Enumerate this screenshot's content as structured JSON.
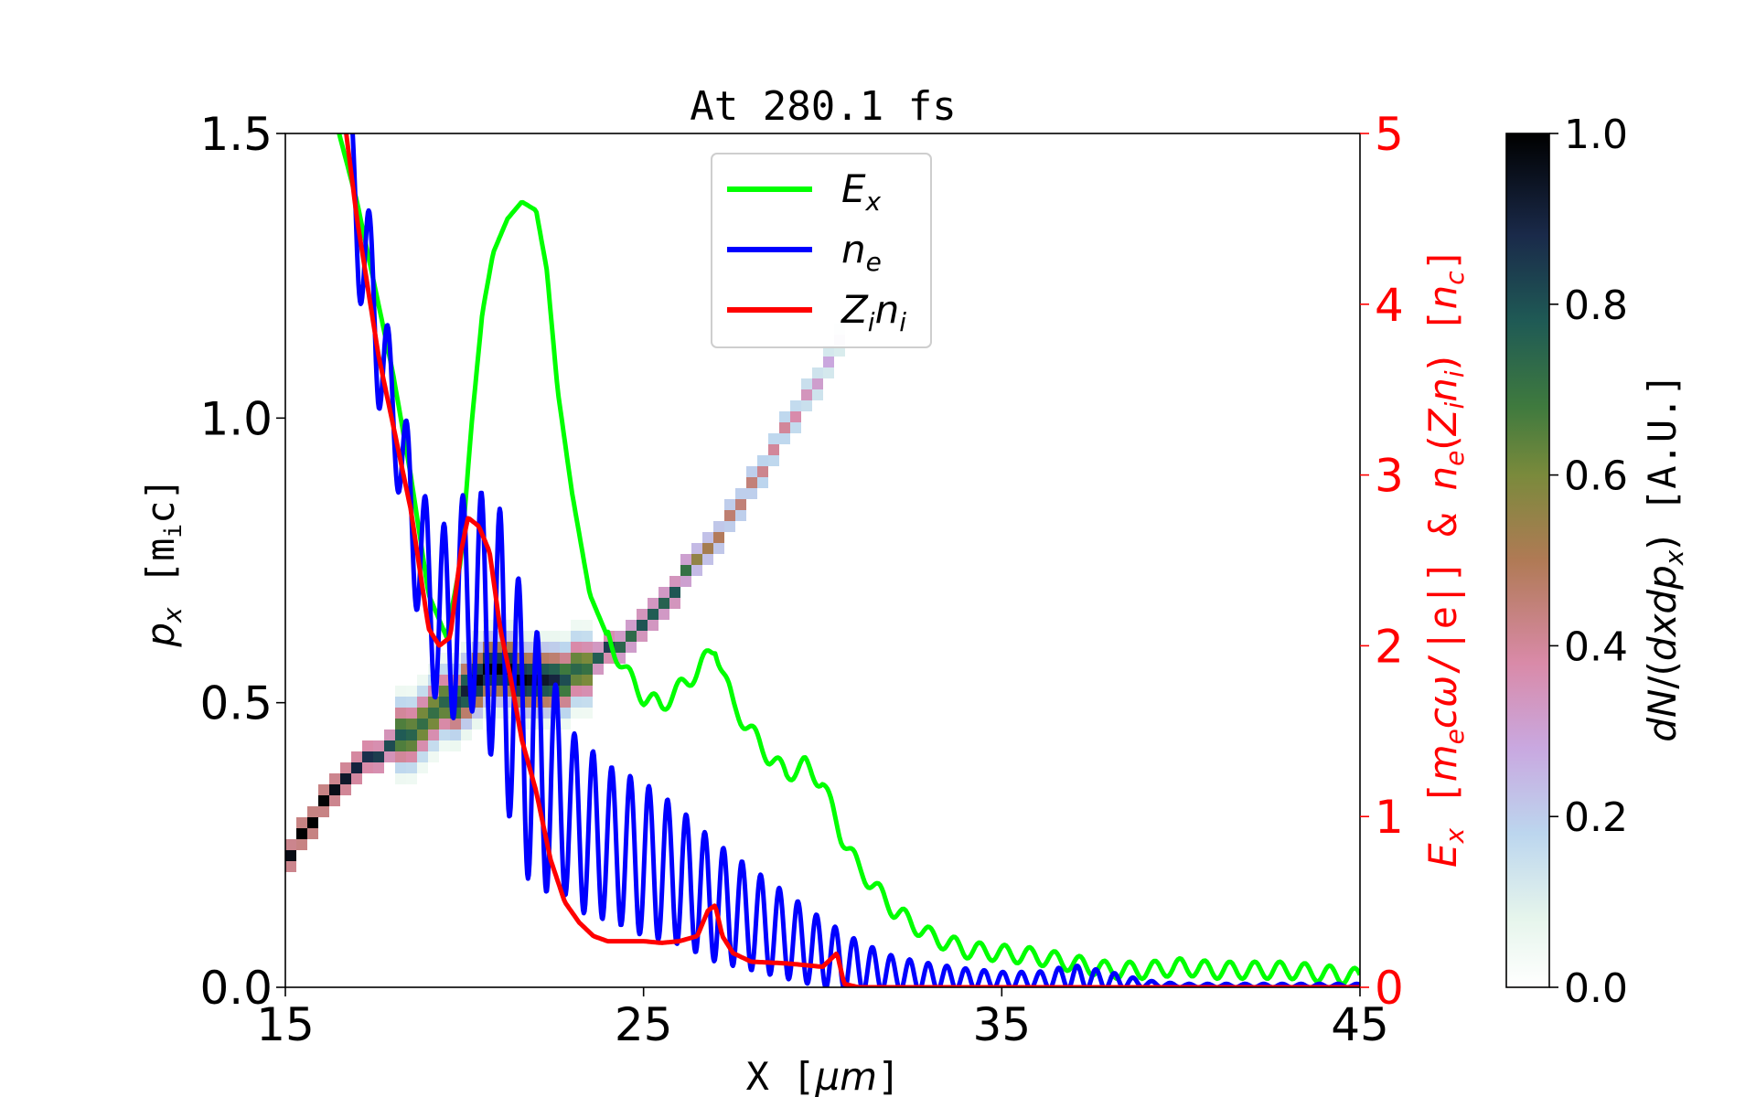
{
  "chart_data": {
    "type": "line",
    "title": "At 280.1 fs",
    "xlabel": "X [μm]",
    "ylabel_left": "p_x [m_ic]",
    "ylabel_right": "E_x [m_ecω/|e|] & n_e(Z_in_i) [n_c]",
    "colorbar_label": "dN/(dxdp_x) [A.U.]",
    "xlim": [
      15,
      45
    ],
    "ylim_left": [
      0,
      1.5
    ],
    "ylim_right": [
      0,
      5
    ],
    "colorbar_range": [
      0,
      1
    ],
    "x_ticks": [
      "15",
      "25",
      "35",
      "45"
    ],
    "x_tick_values": [
      15,
      25,
      35,
      45
    ],
    "y_left_ticks": [
      "0.0",
      "0.5",
      "1.0",
      "1.5"
    ],
    "y_left_tick_values": [
      0,
      0.5,
      1.0,
      1.5
    ],
    "y_right_ticks": [
      "0",
      "1",
      "2",
      "3",
      "4",
      "5"
    ],
    "y_right_tick_values": [
      0,
      1,
      2,
      3,
      4,
      5
    ],
    "colorbar_ticks": [
      "0.0",
      "0.2",
      "0.4",
      "0.6",
      "0.8",
      "1.0"
    ],
    "colorbar_tick_values": [
      0,
      0.2,
      0.4,
      0.6,
      0.8,
      1.0
    ],
    "legend": {
      "placement": "upper-center",
      "entries": [
        {
          "main": "E",
          "sub": "x",
          "color": "#00ff00"
        },
        {
          "main": "n",
          "sub": "e",
          "color": "#0000ff"
        },
        {
          "main": "Z",
          "sub": "i",
          "main2": "n",
          "sub2": "i",
          "color": "#ff0000"
        }
      ]
    },
    "series": [
      {
        "name": "E_x",
        "color": "#00ff00",
        "axis": "right",
        "x": [
          16.5,
          17.0,
          17.5,
          18.0,
          18.5,
          19.0,
          19.5,
          19.9,
          20.2,
          20.5,
          20.8,
          21.2,
          21.6,
          22.0,
          22.3,
          22.6,
          23.0,
          23.5,
          24.0,
          24.5,
          25.0,
          25.5,
          26.0,
          26.5,
          27.0,
          27.5,
          28.0,
          28.5,
          29.0,
          29.5,
          30.0,
          30.5,
          31.0,
          32.0,
          33.0,
          34.0,
          35.0,
          36.0,
          37.0,
          38.0,
          39.0,
          40.0,
          41.0,
          42.0,
          43.0,
          44.0,
          45.0
        ],
        "values": [
          5.0,
          4.6,
          4.1,
          3.6,
          3.0,
          2.3,
          2.05,
          2.5,
          3.3,
          3.95,
          4.3,
          4.5,
          4.6,
          4.55,
          4.2,
          3.5,
          2.9,
          2.3,
          2.05,
          1.85,
          1.7,
          1.65,
          1.75,
          1.85,
          2.0,
          1.65,
          1.5,
          1.35,
          1.25,
          1.3,
          1.2,
          0.9,
          0.7,
          0.45,
          0.3,
          0.22,
          0.2,
          0.18,
          0.14,
          0.1,
          0.1,
          0.12,
          0.1,
          0.1,
          0.1,
          0.08,
          0.06
        ]
      },
      {
        "name": "n_e",
        "color": "#0000ff",
        "axis": "right",
        "x": [
          16.7,
          17.0,
          17.3,
          17.6,
          18.0,
          18.5,
          19.0,
          19.5,
          20.0,
          20.5,
          21.0,
          21.5,
          22.0,
          22.5,
          23.0,
          23.5,
          24.0,
          25.0,
          26.0,
          27.0,
          28.0,
          29.0,
          30.0,
          31.0,
          32.0,
          33.0,
          34.0,
          35.0,
          36.0,
          37.0,
          38.0,
          39.0,
          40.0,
          41.0,
          42.0,
          43.0,
          44.0,
          45.0
        ],
        "values": [
          5.0,
          4.5,
          4.2,
          3.8,
          3.4,
          2.8,
          2.3,
          2.1,
          2.3,
          2.2,
          2.0,
          1.6,
          1.3,
          1.2,
          1.0,
          0.9,
          0.85,
          0.75,
          0.65,
          0.5,
          0.4,
          0.3,
          0.2,
          0.12,
          0.08,
          0.06,
          0.05,
          0.04,
          0.04,
          0.06,
          0.04,
          0.02,
          0.01,
          0.01,
          0.01,
          0.01,
          0.01,
          0.01
        ],
        "oscillation": [
          0.3,
          0.4,
          0.4,
          0.4,
          0.3,
          0.4,
          0.5,
          0.6,
          0.6,
          0.7,
          0.8,
          0.8,
          0.8,
          0.6,
          0.5,
          0.5,
          0.45,
          0.45,
          0.4,
          0.35,
          0.3,
          0.25,
          0.2,
          0.15,
          0.1,
          0.08,
          0.06,
          0.05,
          0.05,
          0.07,
          0.05,
          0.02,
          0.01,
          0.01,
          0.01,
          0.01,
          0.01,
          0.01
        ]
      },
      {
        "name": "Z_in_i",
        "color": "#ff0000",
        "axis": "right",
        "x": [
          16.7,
          17.0,
          17.3,
          17.6,
          18.0,
          18.5,
          19.0,
          19.3,
          19.6,
          19.9,
          20.1,
          20.4,
          20.7,
          21.0,
          21.3,
          21.6,
          22.0,
          22.4,
          22.8,
          23.2,
          23.6,
          24.0,
          24.5,
          25.0,
          25.5,
          26.0,
          26.5,
          26.8,
          27.0,
          27.2,
          27.5,
          28.0,
          29.0,
          30.0,
          30.4,
          30.6,
          31.0,
          35.0,
          40.0,
          45.0
        ],
        "values": [
          5.0,
          4.5,
          4.1,
          3.7,
          3.3,
          2.8,
          2.1,
          2.0,
          2.05,
          2.55,
          2.75,
          2.7,
          2.55,
          2.1,
          1.8,
          1.45,
          1.15,
          0.75,
          0.5,
          0.38,
          0.3,
          0.27,
          0.27,
          0.27,
          0.26,
          0.27,
          0.3,
          0.45,
          0.48,
          0.3,
          0.2,
          0.15,
          0.14,
          0.12,
          0.2,
          0.02,
          0.0,
          0.0,
          0.0,
          0.0
        ]
      }
    ],
    "phase_space": {
      "axis": "left",
      "colormap": "cubehelix_r",
      "main_curve": {
        "x": [
          15.0,
          15.5,
          16.0,
          16.5,
          17.0,
          17.5,
          18.0,
          18.5,
          19.0,
          19.5,
          20.0,
          20.5,
          21.0,
          21.5,
          22.0,
          22.5,
          23.0,
          23.5,
          24.0,
          24.5,
          25.0,
          25.5,
          26.0,
          26.5,
          27.0,
          27.5,
          28.0,
          28.5,
          29.0,
          29.5,
          30.0,
          30.5
        ],
        "values": [
          0.22,
          0.27,
          0.32,
          0.36,
          0.39,
          0.41,
          0.43,
          0.45,
          0.47,
          0.5,
          0.52,
          0.55,
          0.56,
          0.55,
          0.54,
          0.54,
          0.55,
          0.57,
          0.59,
          0.61,
          0.64,
          0.67,
          0.71,
          0.75,
          0.79,
          0.83,
          0.88,
          0.93,
          0.98,
          1.03,
          1.08,
          1.14
        ],
        "intensity": [
          0.95,
          1.0,
          1.0,
          0.95,
          0.9,
          0.85,
          0.8,
          0.75,
          0.7,
          0.75,
          0.9,
          1.0,
          1.0,
          1.0,
          0.95,
          0.9,
          0.75,
          0.7,
          0.85,
          0.7,
          0.8,
          0.75,
          0.8,
          0.55,
          0.5,
          0.45,
          0.45,
          0.4,
          0.4,
          0.35,
          0.3,
          0.25
        ]
      }
    }
  }
}
